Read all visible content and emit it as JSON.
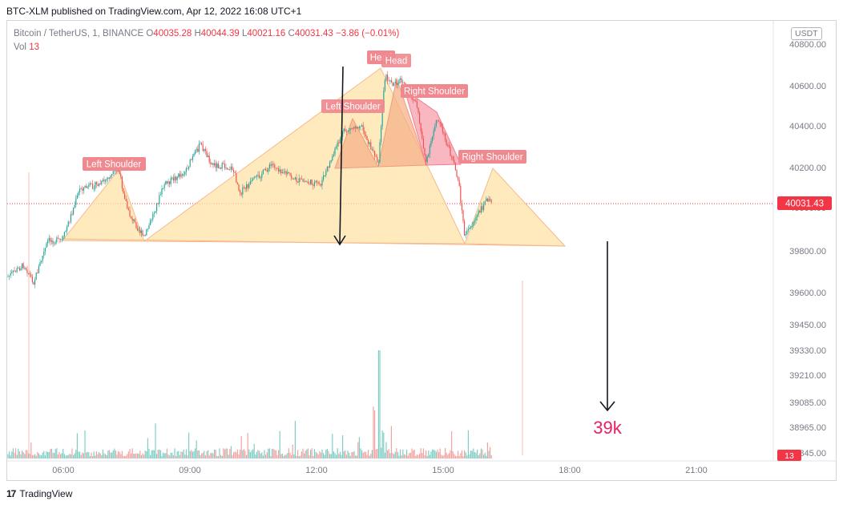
{
  "header": {
    "publish_text": "BTC-XLM published on TradingView.com, Apr 12, 2022 16:08 UTC+1"
  },
  "legend": {
    "symbol": "Bitcoin / TetherUS, 1, BINANCE",
    "o_label": "O",
    "o": "40035.28",
    "h_label": "H",
    "h": "40044.39",
    "l_label": "L",
    "l": "40021.16",
    "c_label": "C",
    "c": "40031.43",
    "change": "−3.86 (−0.01%)",
    "vol_label": "Vol",
    "vol": "13"
  },
  "currency_button": "USDT",
  "footer": {
    "brand": "TradingView",
    "logo": "17"
  },
  "chart_data": {
    "type": "candlestick",
    "price_axis_ticks": [
      "40800.00",
      "40600.00",
      "40400.00",
      "40200.00",
      "40000.00",
      "39800.00",
      "39600.00",
      "39450.00",
      "39330.00",
      "39210.00",
      "39085.00",
      "38965.00",
      "38845.00"
    ],
    "time_axis_ticks": [
      "06:00",
      "09:00",
      "12:00",
      "15:00",
      "18:00",
      "21:00"
    ],
    "last_price": "40031.43",
    "volume_label": "13",
    "annotations": [
      {
        "text": "Left Shoulder"
      },
      {
        "text": "Head"
      },
      {
        "text": "Right Shoulder"
      },
      {
        "text": "Left Shoulder"
      },
      {
        "text": "Head"
      },
      {
        "text": "Right Shoulder"
      }
    ],
    "target_text": "39k",
    "colors": {
      "up": "#26a69a",
      "down": "#ef5350",
      "pattern_fill": "#fde3a7",
      "pattern_line": "#f5a97b",
      "pattern2_fill": "#f7a5b3",
      "label_bg": "#f0888f",
      "target": "#e91e63",
      "last_price_bg": "#f23645"
    }
  }
}
